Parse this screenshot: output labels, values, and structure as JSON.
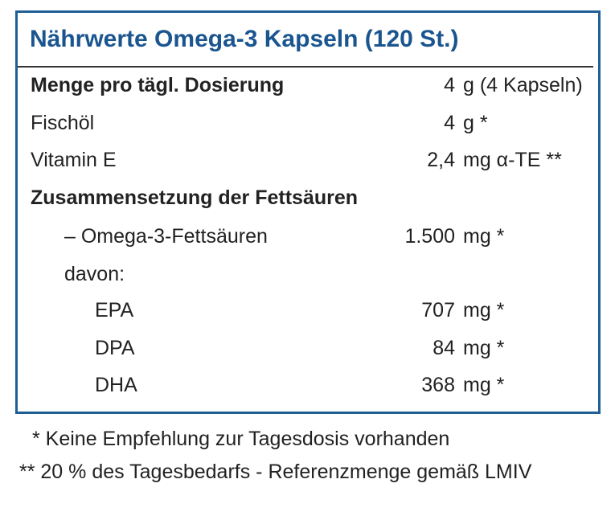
{
  "header": {
    "title": "Nährwerte Omega-3 Kapseln (120 St.)"
  },
  "table": {
    "rows": [
      {
        "label": "Menge pro tägl. Dosierung",
        "amount": "4",
        "unit": "g (4 Kapseln)"
      },
      {
        "label": "Fischöl",
        "amount": "4",
        "unit": "g *"
      },
      {
        "label": "Vitamin E",
        "amount": "2,4",
        "unit": "mg α-TE **"
      },
      {
        "label": "Zusammensetzung der Fettsäuren"
      },
      {
        "label": "– Omega-3-Fettsäuren",
        "amount": "1.500",
        "unit": "mg *"
      },
      {
        "label": "davon:"
      },
      {
        "label": "EPA",
        "amount": "707",
        "unit": "mg *"
      },
      {
        "label": "DPA",
        "amount": "84",
        "unit": "mg *"
      },
      {
        "label": "DHA",
        "amount": "368",
        "unit": "mg *"
      }
    ]
  },
  "footnotes": [
    "* Keine Empfehlung zur Tagesdosis vorhanden",
    "** 20 % des Tagesbedarfs - Referenzmenge gemäß LMIV"
  ]
}
